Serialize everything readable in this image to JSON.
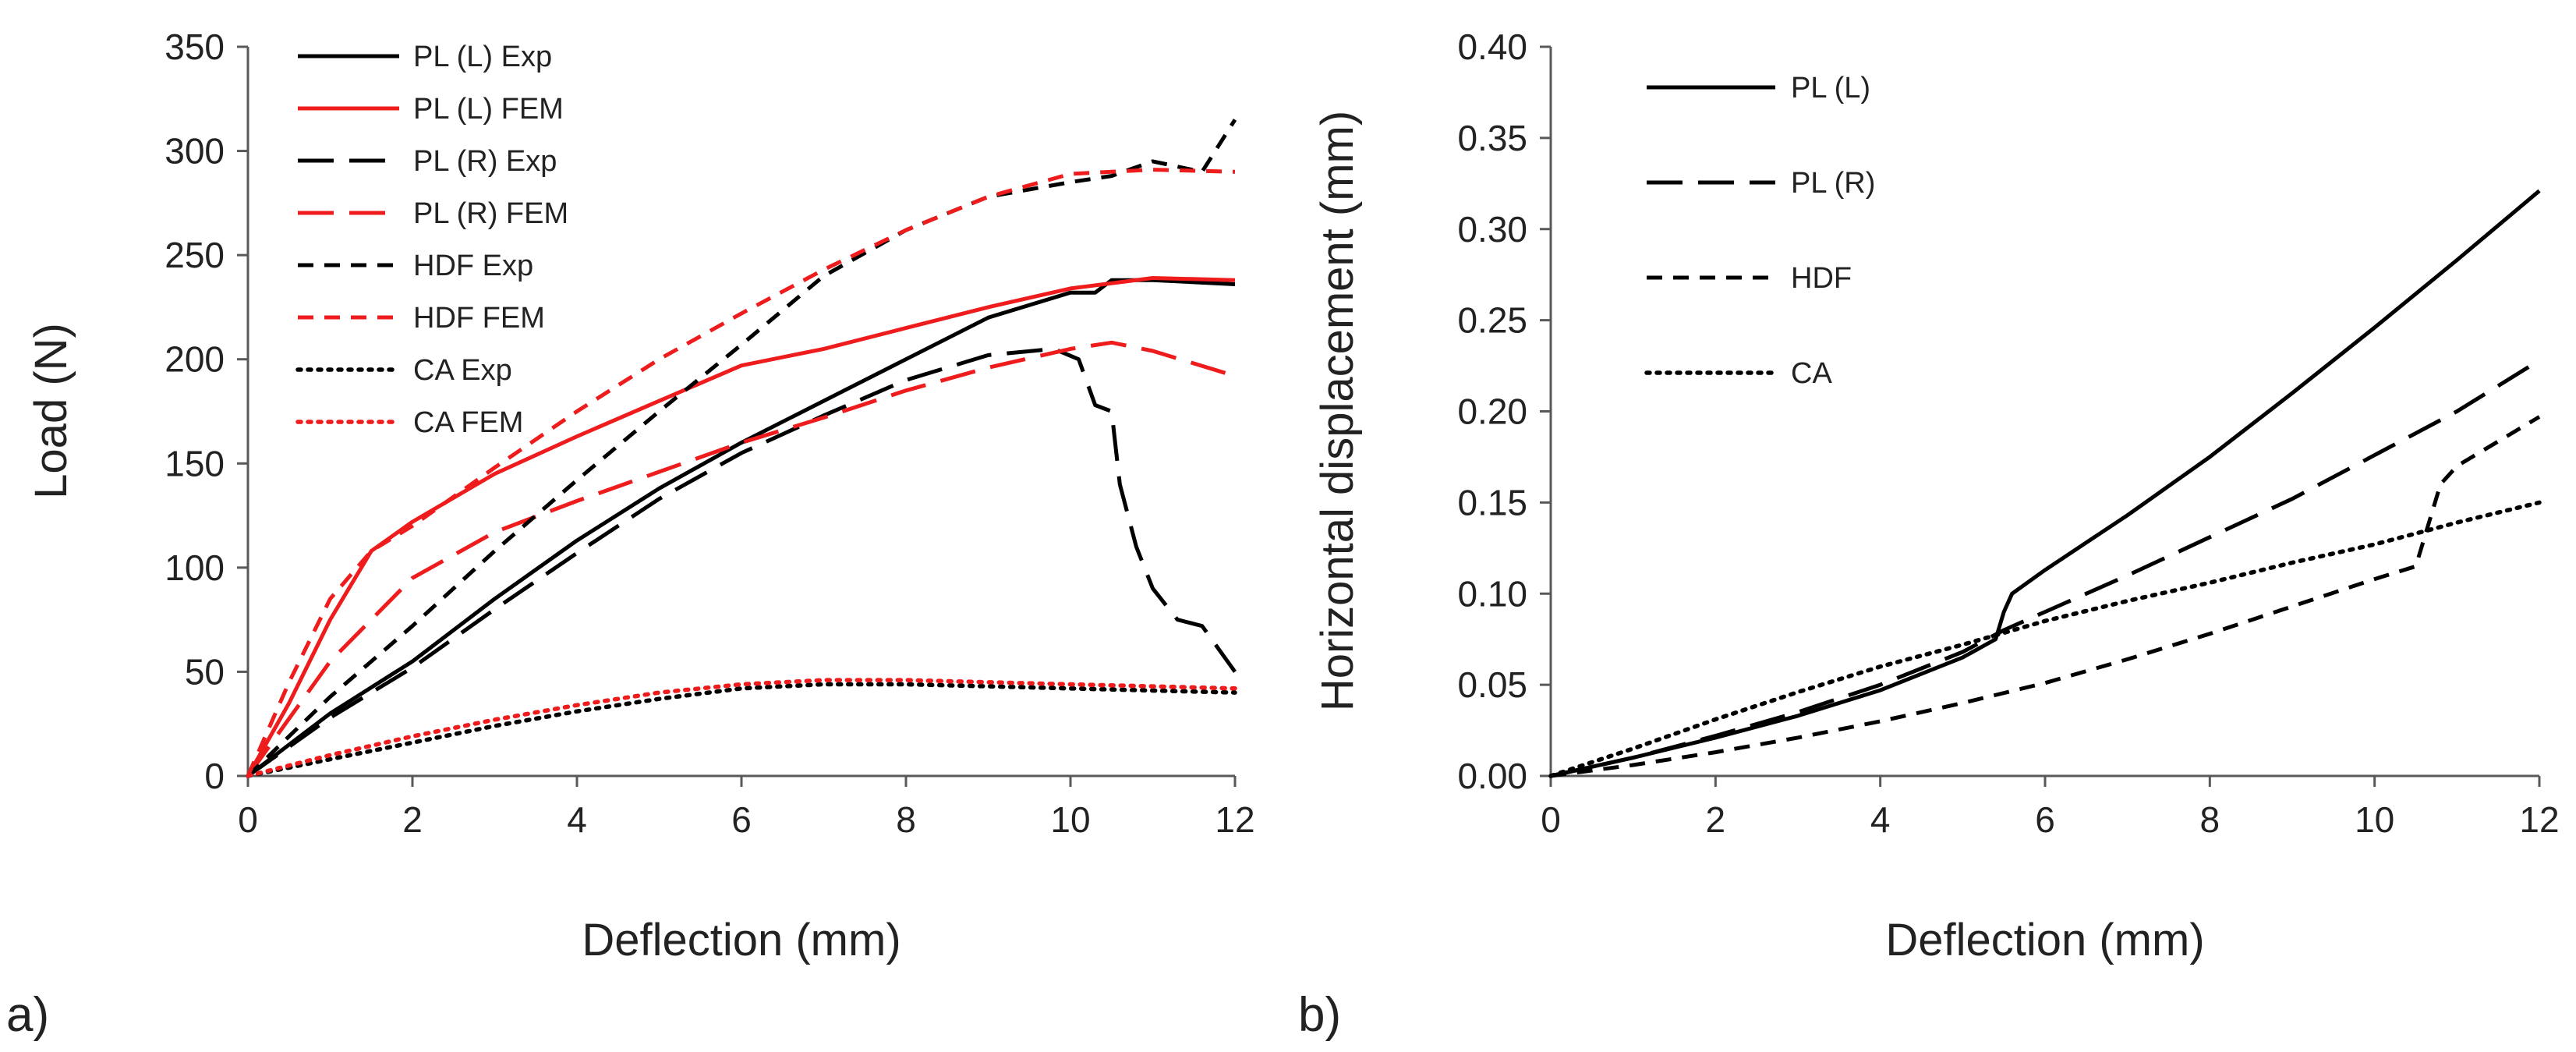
{
  "colors": {
    "exp": "#000000",
    "fem": "#ee1c1c",
    "axis": "#595959"
  },
  "chart_data": [
    {
      "type": "line",
      "panel_label": "a)",
      "xlabel": "Deflection (mm)",
      "ylabel": "Load (N)",
      "xlim": [
        0,
        12
      ],
      "ylim": [
        0,
        350
      ],
      "x_ticks": [
        "0",
        "2",
        "4",
        "6",
        "8",
        "10",
        "12"
      ],
      "y_ticks": [
        "0",
        "50",
        "100",
        "150",
        "200",
        "250",
        "300",
        "350"
      ],
      "grid": false,
      "legend_position": "top-left",
      "series": [
        {
          "name": "PL (L) Exp",
          "color": "exp",
          "dash": "solid",
          "points": [
            [
              0,
              0
            ],
            [
              1,
              30
            ],
            [
              2,
              55
            ],
            [
              3,
              85
            ],
            [
              4,
              113
            ],
            [
              5,
              138
            ],
            [
              6,
              160
            ],
            [
              7,
              180
            ],
            [
              8,
              200
            ],
            [
              9,
              220
            ],
            [
              10,
              232
            ],
            [
              10.3,
              232
            ],
            [
              10.5,
              238
            ],
            [
              11,
              238
            ],
            [
              12,
              236
            ]
          ]
        },
        {
          "name": "PL (L) FEM",
          "color": "fem",
          "dash": "solid",
          "points": [
            [
              0,
              0
            ],
            [
              0.5,
              35
            ],
            [
              1,
              75
            ],
            [
              1.5,
              108
            ],
            [
              2,
              122
            ],
            [
              3,
              145
            ],
            [
              4,
              163
            ],
            [
              5,
              180
            ],
            [
              6,
              197
            ],
            [
              7,
              205
            ],
            [
              8,
              215
            ],
            [
              9,
              225
            ],
            [
              10,
              234
            ],
            [
              11,
              239
            ],
            [
              12,
              238
            ]
          ]
        },
        {
          "name": "PL (R) Exp",
          "color": "exp",
          "dash": "long",
          "points": [
            [
              0,
              0
            ],
            [
              1,
              28
            ],
            [
              2,
              52
            ],
            [
              3,
              80
            ],
            [
              4,
              107
            ],
            [
              5,
              133
            ],
            [
              6,
              155
            ],
            [
              7,
              173
            ],
            [
              8,
              190
            ],
            [
              9,
              202
            ],
            [
              9.8,
              205
            ],
            [
              10.1,
              200
            ],
            [
              10.3,
              178
            ],
            [
              10.5,
              175
            ],
            [
              10.6,
              140
            ],
            [
              10.8,
              110
            ],
            [
              11,
              90
            ],
            [
              11.3,
              75
            ],
            [
              11.6,
              72
            ],
            [
              12,
              50
            ]
          ]
        },
        {
          "name": "PL (R) FEM",
          "color": "fem",
          "dash": "long",
          "points": [
            [
              0,
              0
            ],
            [
              1,
              55
            ],
            [
              2,
              95
            ],
            [
              3,
              117
            ],
            [
              4,
              132
            ],
            [
              5,
              146
            ],
            [
              6,
              160
            ],
            [
              7,
              172
            ],
            [
              8,
              185
            ],
            [
              9,
              196
            ],
            [
              10,
              205
            ],
            [
              10.5,
              208
            ],
            [
              11,
              204
            ],
            [
              12,
              192
            ]
          ]
        },
        {
          "name": "HDF Exp",
          "color": "exp",
          "dash": "medium",
          "points": [
            [
              0,
              0
            ],
            [
              1,
              38
            ],
            [
              2,
              72
            ],
            [
              3,
              108
            ],
            [
              4,
              142
            ],
            [
              5,
              175
            ],
            [
              6,
              207
            ],
            [
              7,
              240
            ],
            [
              8,
              262
            ],
            [
              9,
              278
            ],
            [
              10,
              285
            ],
            [
              10.5,
              288
            ],
            [
              11,
              295
            ],
            [
              11.6,
              290
            ],
            [
              12,
              315
            ]
          ]
        },
        {
          "name": "HDF FEM",
          "color": "fem",
          "dash": "medium",
          "points": [
            [
              0,
              0
            ],
            [
              0.5,
              45
            ],
            [
              1,
              85
            ],
            [
              1.5,
              108
            ],
            [
              2,
              120
            ],
            [
              3,
              148
            ],
            [
              4,
              175
            ],
            [
              5,
              200
            ],
            [
              6,
              222
            ],
            [
              7,
              243
            ],
            [
              8,
              262
            ],
            [
              9,
              278
            ],
            [
              10,
              289
            ],
            [
              11,
              291
            ],
            [
              12,
              290
            ]
          ]
        },
        {
          "name": "CA Exp",
          "color": "exp",
          "dash": "dot",
          "points": [
            [
              0,
              0
            ],
            [
              1,
              8
            ],
            [
              2,
              16
            ],
            [
              3,
              24
            ],
            [
              4,
              31
            ],
            [
              5,
              37
            ],
            [
              6,
              42
            ],
            [
              7,
              44
            ],
            [
              8,
              44
            ],
            [
              9,
              43
            ],
            [
              10,
              42
            ],
            [
              11,
              41
            ],
            [
              12,
              40
            ]
          ]
        },
        {
          "name": "CA FEM",
          "color": "fem",
          "dash": "dot",
          "points": [
            [
              0,
              0
            ],
            [
              1,
              10
            ],
            [
              2,
              19
            ],
            [
              3,
              27
            ],
            [
              4,
              34
            ],
            [
              5,
              40
            ],
            [
              6,
              44
            ],
            [
              7,
              46
            ],
            [
              8,
              46
            ],
            [
              9,
              45
            ],
            [
              10,
              44
            ],
            [
              11,
              43
            ],
            [
              12,
              42
            ]
          ]
        }
      ]
    },
    {
      "type": "line",
      "panel_label": "b)",
      "xlabel": "Deflection (mm)",
      "ylabel": "Horizontal displacement (mm)",
      "xlim": [
        0,
        12
      ],
      "ylim": [
        0,
        0.4
      ],
      "x_ticks": [
        "0",
        "2",
        "4",
        "6",
        "8",
        "10",
        "12"
      ],
      "y_ticks": [
        "0.00",
        "0.05",
        "0.10",
        "0.15",
        "0.20",
        "0.25",
        "0.30",
        "0.35",
        "0.40"
      ],
      "grid": false,
      "legend_position": "top-left",
      "series": [
        {
          "name": "PL (L)",
          "color": "exp",
          "dash": "solid",
          "points": [
            [
              0,
              0
            ],
            [
              1,
              0.01
            ],
            [
              2,
              0.021
            ],
            [
              3,
              0.033
            ],
            [
              4,
              0.047
            ],
            [
              5,
              0.065
            ],
            [
              5.4,
              0.075
            ],
            [
              5.5,
              0.09
            ],
            [
              5.6,
              0.1
            ],
            [
              6,
              0.113
            ],
            [
              7,
              0.143
            ],
            [
              8,
              0.175
            ],
            [
              9,
              0.21
            ],
            [
              10,
              0.246
            ],
            [
              11,
              0.283
            ],
            [
              12,
              0.321
            ]
          ]
        },
        {
          "name": "PL (R)",
          "color": "exp",
          "dash": "long",
          "points": [
            [
              0,
              0
            ],
            [
              1,
              0.01
            ],
            [
              2,
              0.022
            ],
            [
              3,
              0.035
            ],
            [
              4,
              0.05
            ],
            [
              5,
              0.068
            ],
            [
              5.5,
              0.08
            ],
            [
              6,
              0.09
            ],
            [
              7,
              0.11
            ],
            [
              8,
              0.131
            ],
            [
              9,
              0.152
            ],
            [
              10,
              0.176
            ],
            [
              11,
              0.2
            ],
            [
              12,
              0.228
            ]
          ]
        },
        {
          "name": "HDF",
          "color": "exp",
          "dash": "medium",
          "points": [
            [
              0,
              0
            ],
            [
              1,
              0.006
            ],
            [
              2,
              0.013
            ],
            [
              3,
              0.021
            ],
            [
              4,
              0.03
            ],
            [
              5,
              0.04
            ],
            [
              6,
              0.051
            ],
            [
              7,
              0.064
            ],
            [
              8,
              0.078
            ],
            [
              9,
              0.093
            ],
            [
              10,
              0.108
            ],
            [
              10.5,
              0.115
            ],
            [
              10.6,
              0.13
            ],
            [
              10.8,
              0.16
            ],
            [
              11,
              0.17
            ],
            [
              12,
              0.197
            ]
          ]
        },
        {
          "name": "CA",
          "color": "exp",
          "dash": "dot",
          "points": [
            [
              0,
              0
            ],
            [
              1,
              0.015
            ],
            [
              2,
              0.031
            ],
            [
              3,
              0.046
            ],
            [
              4,
              0.06
            ],
            [
              5,
              0.072
            ],
            [
              6,
              0.085
            ],
            [
              7,
              0.096
            ],
            [
              8,
              0.106
            ],
            [
              9,
              0.117
            ],
            [
              10,
              0.127
            ],
            [
              11,
              0.139
            ],
            [
              12,
              0.15
            ]
          ]
        }
      ]
    }
  ]
}
